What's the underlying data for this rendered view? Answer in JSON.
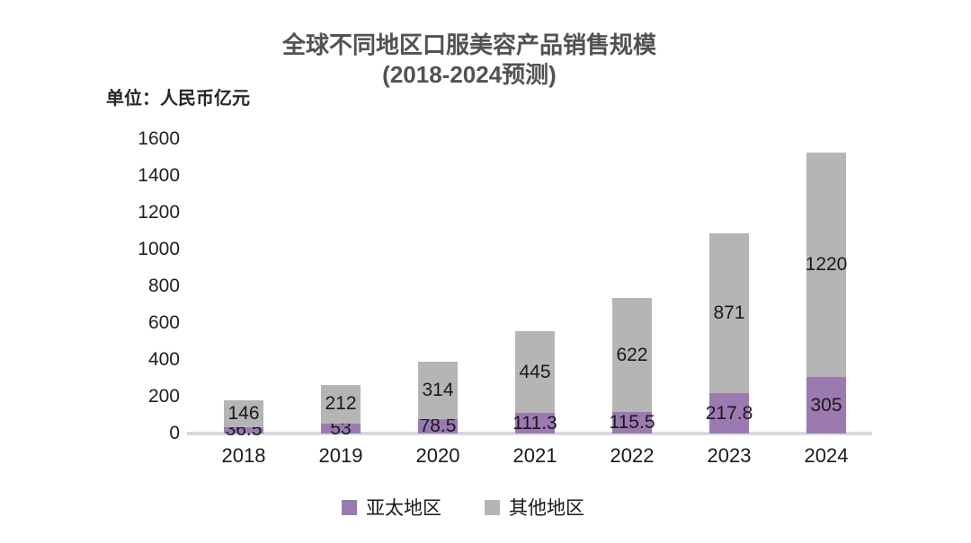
{
  "title": {
    "line1": "全球不同地区口服美容产品销售规模",
    "line2": "(2018-2024预测)"
  },
  "unit_label": "单位：人民币亿元",
  "chart_data": {
    "type": "bar",
    "stacked": true,
    "title": "全球不同地区口服美容产品销售规模 (2018-2024预测)",
    "unit": "单位：人民币亿元",
    "categories": [
      "2018",
      "2019",
      "2020",
      "2021",
      "2022",
      "2023",
      "2024"
    ],
    "series": [
      {
        "name": "亚太地区",
        "color": "#9b7ab2",
        "values": [
          36.5,
          53,
          78.5,
          111.3,
          115.5,
          217.8,
          305
        ]
      },
      {
        "name": "其他地区",
        "color": "#b5b5b5",
        "values": [
          146,
          212,
          314,
          445,
          622,
          871,
          1220
        ]
      }
    ],
    "ylim": [
      0,
      1600
    ],
    "yticks": [
      0,
      200,
      400,
      600,
      800,
      1000,
      1200,
      1400,
      1600
    ],
    "grid": false,
    "data_labels": true,
    "legend_position": "bottom"
  },
  "colors": {
    "apac_purple": "#9b7ab2",
    "other_gray": "#b5b5b5",
    "baseline_gray": "#d9d9d9",
    "title_text": "#525252",
    "label_text": "#1a1a1a"
  }
}
